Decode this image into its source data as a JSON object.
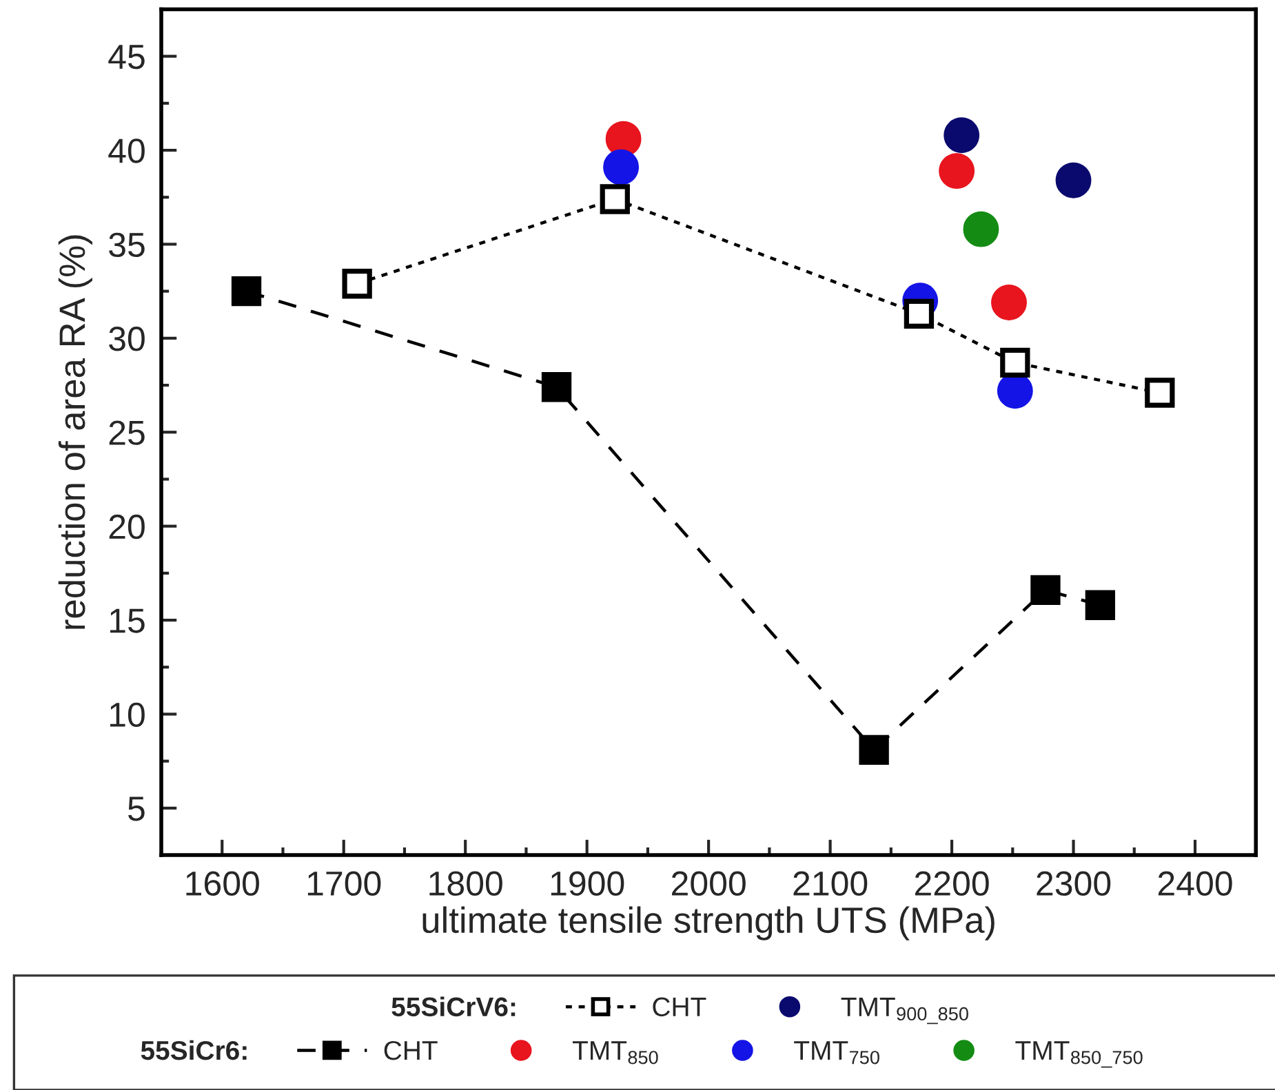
{
  "chart_data": {
    "type": "scatter",
    "xlabel": "ultimate tensile strength UTS (MPa)",
    "ylabel": "reduction of area RA (%)",
    "xlim": [
      1550,
      2450
    ],
    "xticks": [
      1600,
      {
        "value": 1650,
        "label": null
      },
      1700,
      {
        "value": 1750,
        "label": null
      },
      1800,
      {
        "value": 1850,
        "label": null
      },
      1900,
      {
        "value": 1950,
        "label": null
      },
      2000,
      {
        "value": 2050,
        "label": null
      },
      2100,
      {
        "value": 2150,
        "label": null
      },
      2200,
      {
        "value": 2250,
        "label": null
      },
      2300,
      {
        "value": 2350,
        "label": null
      },
      2400
    ],
    "ylim": [
      2.5,
      47.5
    ],
    "yticks": [
      5,
      {
        "value": 7.5,
        "label": null
      },
      10,
      {
        "value": 12.5,
        "label": null
      },
      15,
      {
        "value": 17.5,
        "label": null
      },
      20,
      {
        "value": 22.5,
        "label": null
      },
      25,
      {
        "value": 27.5,
        "label": null
      },
      30,
      {
        "value": 32.5,
        "label": null
      },
      35,
      {
        "value": 37.5,
        "label": null
      },
      40,
      {
        "value": 42.5,
        "label": null
      },
      45
    ],
    "grid": false,
    "legend": "bottom",
    "annotations": [
      "55SiCrV6:",
      "55SiCr6:"
    ],
    "series": [
      {
        "name": "CHT",
        "type": "line",
        "marker": "square",
        "line_style": "dotted",
        "color": "#000000",
        "x": [
          1711,
          1923,
          2173,
          2252,
          2371
        ],
        "values": [
          32.9,
          37.4,
          31.3,
          28.7,
          27.1
        ]
      },
      {
        "name": "TMT$_{900_850}$",
        "marker": "circle",
        "color": "#0a0a6e",
        "x": [
          2208,
          2300
        ],
        "values": [
          40.8,
          38.4
        ]
      },
      {
        "name": "CHT",
        "type": "line",
        "marker": "square",
        "line_style": "dashed",
        "color": "#000000",
        "x": [
          1620,
          1875,
          2136,
          2277,
          2322
        ],
        "values": [
          32.5,
          27.4,
          8.1,
          16.6,
          15.8
        ]
      },
      {
        "name": "TMT$_{850}$",
        "marker": "circle",
        "color": "#e8141e",
        "x": [
          1930,
          2204,
          2247
        ],
        "values": [
          40.6,
          38.9,
          31.9
        ]
      },
      {
        "name": "TMT$_{750}$",
        "marker": "circle",
        "color": "#1414e6",
        "x": [
          1928,
          2174,
          2252
        ],
        "values": [
          39.1,
          32.0,
          27.2
        ]
      },
      {
        "name": "TMT$_{850_750}$",
        "marker": "circle",
        "color": "#148c14",
        "x": [
          2224
        ],
        "values": [
          35.8
        ]
      }
    ]
  }
}
